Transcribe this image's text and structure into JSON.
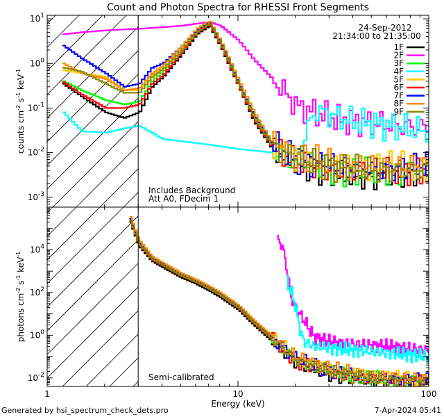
{
  "chart_data": [
    {
      "type": "line",
      "title": "Count and Photon Spectra for RHESSI Front Segments",
      "xlabel": "Energy (keV)",
      "ylabel": "counts cm^-2 s^-1 keV^-1",
      "xscale": "log",
      "yscale": "log",
      "xlim": [
        1,
        100
      ],
      "ylim": [
        0.0006,
        12
      ],
      "x_ticks": [
        {
          "v": 1,
          "label": "1"
        },
        {
          "v": 10,
          "label": "10"
        },
        {
          "v": 100,
          "label": "100"
        }
      ],
      "y_ticks": [
        {
          "v": 0.001,
          "base": "10",
          "exp": "-3"
        },
        {
          "v": 0.01,
          "base": "10",
          "exp": "-2"
        },
        {
          "v": 0.1,
          "base": "10",
          "exp": "-1"
        },
        {
          "v": 1,
          "base": "10",
          "exp": "0"
        },
        {
          "v": 10,
          "base": "10",
          "exp": "1"
        }
      ],
      "date": "24-Sep-2012",
      "time_range": "21:34:00 to 21:35:00",
      "annotations": [
        "Includes Background",
        "Att A0, FDecim 1"
      ],
      "cutoff_energy": 3,
      "series": [
        {
          "name": "1F",
          "color": "#000000",
          "x": [
            1.2,
            1.5,
            2,
            2.5,
            3,
            3.5,
            4,
            5,
            6,
            7,
            8,
            9,
            10,
            12,
            15,
            20,
            30,
            50,
            100
          ],
          "y": [
            0.35,
            0.18,
            0.08,
            0.06,
            0.08,
            0.3,
            0.5,
            1.6,
            4.5,
            7,
            2.5,
            0.8,
            0.3,
            0.05,
            0.012,
            0.006,
            0.0035,
            0.0025,
            0.003
          ]
        },
        {
          "name": "2F",
          "color": "#ff00ff",
          "x": [
            1.2,
            1.5,
            2,
            2.5,
            3,
            4,
            5,
            6,
            7,
            8,
            10,
            12,
            15,
            20,
            30,
            50,
            100
          ],
          "y": [
            4.5,
            5,
            5.5,
            5.8,
            6,
            6.5,
            7,
            7.8,
            8.5,
            7,
            3.2,
            1.2,
            0.45,
            0.11,
            0.06,
            0.045,
            0.035
          ]
        },
        {
          "name": "3F",
          "color": "#00ff00",
          "x": [
            1.2,
            1.5,
            2,
            2.5,
            3,
            3.5,
            4,
            5,
            6,
            7,
            8,
            9,
            10,
            12,
            15,
            20,
            30,
            50,
            100
          ],
          "y": [
            0.4,
            0.25,
            0.15,
            0.12,
            0.14,
            0.4,
            0.65,
            2,
            5,
            8,
            2.8,
            0.9,
            0.32,
            0.06,
            0.014,
            0.006,
            0.004,
            0.0035,
            0.004
          ]
        },
        {
          "name": "4F",
          "color": "#00ffff",
          "x": [
            1.2,
            1.5,
            2,
            2.5,
            3,
            4,
            5,
            7,
            10,
            15,
            20,
            25,
            30,
            40,
            60,
            100
          ],
          "y": [
            0.08,
            0.03,
            0.028,
            0.035,
            0.04,
            0.02,
            0.018,
            0.015,
            0.012,
            0.01,
            0.008,
            0.09,
            0.07,
            0.05,
            0.04,
            0.03
          ]
        },
        {
          "name": "5F",
          "color": "#ffcc00",
          "x": [
            1.2,
            1.5,
            2,
            2.5,
            3,
            3.5,
            4,
            5,
            6,
            7,
            8,
            9,
            10,
            12,
            15,
            20,
            30,
            50,
            100
          ],
          "y": [
            0.7,
            0.6,
            0.5,
            0.25,
            0.25,
            0.55,
            0.8,
            2.2,
            5.5,
            8.5,
            3,
            1,
            0.35,
            0.07,
            0.015,
            0.007,
            0.005,
            0.005,
            0.005
          ]
        },
        {
          "name": "6F",
          "color": "#ff0000",
          "x": [
            1.2,
            1.5,
            2,
            2.5,
            3,
            3.5,
            4,
            5,
            6,
            7,
            8,
            9,
            10,
            12,
            15,
            20,
            30,
            50,
            100
          ],
          "y": [
            0.38,
            0.2,
            0.1,
            0.1,
            0.12,
            0.35,
            0.55,
            1.8,
            4.8,
            7.5,
            2.6,
            0.85,
            0.3,
            0.055,
            0.013,
            0.006,
            0.004,
            0.004,
            0.004
          ]
        },
        {
          "name": "7F",
          "color": "#0000ff",
          "x": [
            1.2,
            1.5,
            2,
            2.5,
            3,
            3.5,
            4,
            5,
            6,
            7,
            8,
            9,
            10,
            12,
            15,
            20,
            30,
            50,
            100
          ],
          "y": [
            2.5,
            1.3,
            0.6,
            0.3,
            0.35,
            0.8,
            1,
            2.4,
            5.5,
            8.5,
            3,
            1,
            0.35,
            0.07,
            0.015,
            0.007,
            0.005,
            0.004,
            0.005
          ]
        },
        {
          "name": "8F",
          "color": "#ff8800",
          "x": [
            1.2,
            1.5,
            2,
            2.5,
            3,
            3.5,
            4,
            5,
            6,
            7,
            8,
            9,
            10,
            12,
            15,
            20,
            30,
            50,
            100
          ],
          "y": [
            1,
            0.6,
            0.45,
            0.25,
            0.28,
            0.6,
            0.9,
            2.4,
            6,
            9,
            3.2,
            1.1,
            0.4,
            0.08,
            0.016,
            0.008,
            0.006,
            0.005,
            0.005
          ]
        },
        {
          "name": "9F",
          "color": "#888800",
          "x": [
            1.2,
            1.5,
            2,
            2.5,
            3,
            3.5,
            4,
            5,
            6,
            7,
            8,
            9,
            10,
            12,
            15,
            20,
            30,
            50,
            100
          ],
          "y": [
            0.8,
            0.65,
            0.35,
            0.22,
            0.22,
            0.5,
            0.75,
            2,
            5,
            8,
            2.8,
            0.95,
            0.33,
            0.065,
            0.014,
            0.007,
            0.005,
            0.004,
            0.004
          ]
        }
      ]
    },
    {
      "type": "line",
      "xlabel": "Energy (keV)",
      "ylabel": "photons cm^-2 s^-1 keV^-1",
      "xscale": "log",
      "yscale": "log",
      "xlim": [
        1,
        100
      ],
      "ylim": [
        0.004,
        1000000
      ],
      "x_ticks": [
        {
          "v": 1,
          "label": "1"
        },
        {
          "v": 10,
          "label": "10"
        },
        {
          "v": 100,
          "label": "100"
        }
      ],
      "y_ticks": [
        {
          "v": 0.01,
          "base": "10",
          "exp": "-2"
        },
        {
          "v": 1,
          "base": "10",
          "exp": "0"
        },
        {
          "v": 100,
          "base": "10",
          "exp": "2"
        },
        {
          "v": 10000,
          "base": "10",
          "exp": "4"
        }
      ],
      "annotations": [
        "Semi-calibrated"
      ],
      "cutoff_energy": 3,
      "series": [
        {
          "name": "1F",
          "color": "#000000",
          "x": [
            2.7,
            3,
            3.5,
            4,
            5,
            6,
            7,
            8,
            10,
            12,
            15,
            20,
            30,
            50,
            100
          ],
          "y": [
            200000,
            15000,
            3000,
            1500,
            500,
            250,
            120,
            60,
            15,
            3,
            0.5,
            0.05,
            0.015,
            0.007,
            0.005
          ]
        },
        {
          "name": "2F",
          "color": "#ff00ff",
          "x": [
            16,
            17,
            18,
            19,
            20,
            25,
            30,
            40,
            60,
            100
          ],
          "y": [
            30000,
            15000,
            1000,
            50,
            20,
            0.8,
            0.5,
            0.4,
            0.3,
            0.2
          ]
        },
        {
          "name": "3F",
          "color": "#00ff00",
          "x": [
            2.7,
            3,
            3.5,
            4,
            5,
            6,
            7,
            8,
            10,
            12,
            15,
            20,
            30,
            50,
            100
          ],
          "y": [
            250000,
            20000,
            4000,
            2000,
            650,
            320,
            160,
            80,
            20,
            4,
            0.7,
            0.07,
            0.02,
            0.01,
            0.007
          ]
        },
        {
          "name": "4F",
          "color": "#00ffff",
          "x": [
            18,
            19,
            20,
            21,
            22,
            25,
            30,
            40,
            60,
            100
          ],
          "y": [
            300,
            100,
            20,
            2,
            0.5,
            0.3,
            0.25,
            0.2,
            0.15,
            0.1
          ]
        },
        {
          "name": "5F",
          "color": "#ffcc00",
          "x": [
            2.7,
            3,
            3.5,
            4,
            5,
            6,
            7,
            8,
            10,
            12,
            15,
            20,
            30,
            50,
            100
          ],
          "y": [
            300000,
            25000,
            4500,
            2200,
            700,
            350,
            180,
            90,
            22,
            4.5,
            0.8,
            0.08,
            0.025,
            0.012,
            0.008
          ]
        },
        {
          "name": "6F",
          "color": "#ff0000",
          "x": [
            2.7,
            3,
            3.5,
            4,
            5,
            6,
            7,
            8,
            10,
            12,
            15,
            20,
            30,
            50,
            100
          ],
          "y": [
            220000,
            18000,
            3500,
            1800,
            600,
            300,
            150,
            75,
            18,
            3.5,
            0.6,
            0.06,
            0.018,
            0.009,
            0.007
          ]
        },
        {
          "name": "7F",
          "color": "#0000ff",
          "x": [
            2.7,
            3,
            3.5,
            4,
            5,
            6,
            7,
            8,
            10,
            12,
            15,
            20,
            30,
            50,
            100
          ],
          "y": [
            280000,
            22000,
            4200,
            2100,
            680,
            340,
            170,
            85,
            21,
            4.2,
            0.75,
            0.075,
            0.022,
            0.01,
            0.008
          ]
        },
        {
          "name": "8F",
          "color": "#ff8800",
          "x": [
            2.7,
            3,
            3.5,
            4,
            5,
            6,
            7,
            8,
            10,
            12,
            15,
            20,
            30,
            50,
            100
          ],
          "y": [
            350000,
            28000,
            5000,
            2500,
            800,
            400,
            200,
            100,
            25,
            5,
            0.9,
            0.09,
            0.028,
            0.013,
            0.009
          ]
        },
        {
          "name": "9F",
          "color": "#888800",
          "x": [
            2.7,
            3,
            3.5,
            4,
            5,
            6,
            7,
            8,
            10,
            12,
            15,
            20,
            30,
            50,
            100
          ],
          "y": [
            240000,
            19000,
            3800,
            1900,
            620,
            310,
            155,
            78,
            19,
            3.8,
            0.65,
            0.065,
            0.02,
            0.009,
            0.007
          ]
        }
      ]
    }
  ],
  "footer": {
    "generated_by": "Generated by hsi_spectrum_check_dets.pro",
    "timestamp": "7-Apr-2024 05:41"
  }
}
